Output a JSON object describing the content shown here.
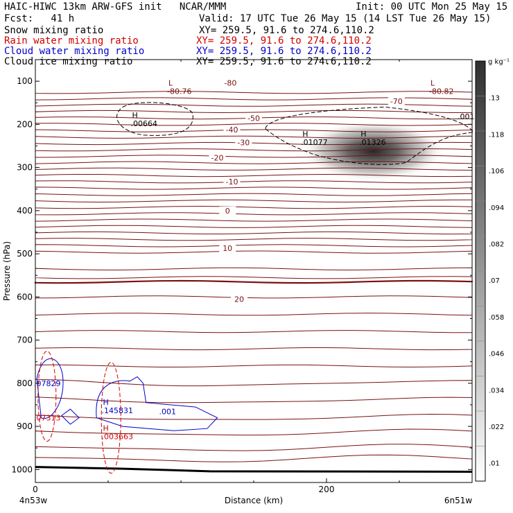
{
  "header": {
    "title": "HAIC-HIWC 13km ARW-GFS init   NCAR/MMM",
    "init": "Init: 00 UTC Mon 25 May 15",
    "fcst": "Fcst:   41 h",
    "valid": "Valid: 17 UTC Tue 26 May 15 (14 LST Tue 26 May 15)"
  },
  "legend": [
    {
      "label": "Snow mixing ratio",
      "xy": "XY= 259.5, 91.6 to 274.6,110.2",
      "color": "#000000"
    },
    {
      "label": "Rain water mixing ratio",
      "xy": "XY= 259.5, 91.6 to 274.6,110.2",
      "color": "#d00000"
    },
    {
      "label": "Cloud water mixing ratio",
      "xy": "XY= 259.5, 91.6 to 274.6,110.2",
      "color": "#0000c8"
    },
    {
      "label": "Cloud ice mixing ratio",
      "xy": "XY= 259.5, 91.6 to 274.6,110.2",
      "color": "#000000"
    }
  ],
  "chart_data": {
    "type": "cross-section",
    "xlabel": "Distance (km)",
    "ylabel": "Pressure (hPa)",
    "x_ticks": [
      0,
      200
    ],
    "x_range": [
      0,
      300
    ],
    "y_ticks": [
      100,
      200,
      300,
      400,
      500,
      600,
      700,
      800,
      900,
      1000
    ],
    "y_range": [
      50,
      1030
    ],
    "left_endpoint": "4n53w",
    "right_endpoint": "6n51w",
    "colorbar": {
      "unit": "g kg⁻¹",
      "ticks": [
        ".01",
        ".022",
        ".034",
        ".046",
        ".058",
        ".07",
        ".082",
        ".094",
        ".106",
        ".118",
        ".13"
      ],
      "min": 0.004,
      "max": 0.142
    },
    "temperature_contours": [
      {
        "value": -80,
        "label": "-80",
        "color": "#7a1010"
      },
      {
        "value": -70,
        "label": "-70",
        "color": "#7a1010"
      },
      {
        "value": -50,
        "label": "-50",
        "color": "#7a1010"
      },
      {
        "value": -40,
        "label": "-40",
        "color": "#7a1010"
      },
      {
        "value": -30,
        "label": "-30",
        "color": "#7a1010"
      },
      {
        "value": -20,
        "label": "-20",
        "color": "#7a1010"
      },
      {
        "value": -10,
        "label": "-10",
        "color": "#7a1010"
      },
      {
        "value": 0,
        "label": "0",
        "color": "#7a1010"
      },
      {
        "value": 10,
        "label": "10",
        "color": "#7a1010"
      },
      {
        "value": 20,
        "label": "20",
        "color": "#7a1010"
      }
    ],
    "extrema": [
      {
        "kind": "L",
        "value": "-80.76",
        "x_km": 100,
        "p": 110,
        "color": "#7a1010"
      },
      {
        "kind": "L",
        "value": "-80.82",
        "x_km": 280,
        "p": 110,
        "color": "#7a1010"
      },
      {
        "kind": "H",
        "value": ".00664",
        "x_km": 75,
        "p": 185,
        "color": "#000000"
      },
      {
        "kind": "H",
        "value": ".01077",
        "x_km": 192,
        "p": 228,
        "color": "#000000"
      },
      {
        "kind": "H",
        "value": ".01326",
        "x_km": 232,
        "p": 228,
        "color": "#000000"
      },
      {
        "kind": "H",
        "value": ".145831",
        "x_km": 55,
        "p": 850,
        "color": "#0000c8"
      },
      {
        "kind": "H",
        "value": ".003663",
        "x_km": 55,
        "p": 910,
        "color": "#d00000"
      }
    ],
    "edge_labels": [
      {
        "value": ".07829",
        "color": "#0000c8"
      },
      {
        "value": ".07313",
        "color": "#d00000"
      }
    ],
    "other_labels": [
      {
        "value": ".001",
        "color": "#0000c8"
      },
      {
        "value": ".001",
        "color": "#000000"
      }
    ],
    "shaded_max": {
      "x_km": 232,
      "p": 262,
      "value": 0.132
    }
  }
}
